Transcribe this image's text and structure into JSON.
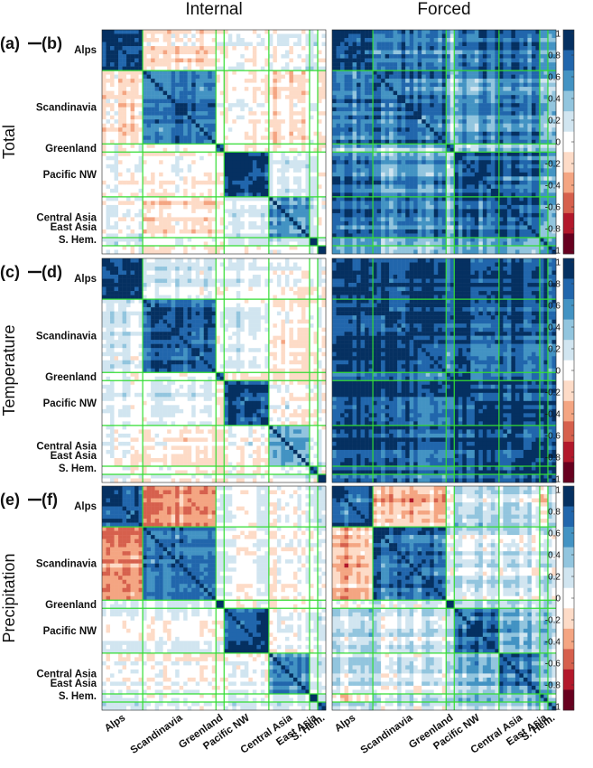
{
  "chart_data": {
    "type": "heatmap",
    "column_titles": [
      "Internal",
      "Forced"
    ],
    "row_titles": [
      "Total",
      "Temperature",
      "Precipitation"
    ],
    "panel_labels": [
      [
        "(a)",
        "(b)"
      ],
      [
        "(c)",
        "(d)"
      ],
      [
        "(e)",
        "(f)"
      ]
    ],
    "regions": [
      "Alps",
      "Scandinavia",
      "Greenland",
      "Pacific NW",
      "Central Asia",
      "East Asia",
      "S. Hem."
    ],
    "region_sizes": [
      10,
      18,
      2,
      11,
      10,
      2,
      2
    ],
    "block_means": {
      "internal": {
        "total": [
          [
            0.95,
            -0.12,
            0.05,
            0.02,
            0.05,
            0.1,
            0.08
          ],
          [
            -0.12,
            0.8,
            0.1,
            0.02,
            -0.08,
            0.0,
            0.0
          ],
          [
            0.05,
            0.1,
            0.95,
            0.0,
            0.0,
            0.0,
            0.0
          ],
          [
            0.02,
            0.02,
            0.0,
            0.92,
            0.1,
            0.05,
            0.05
          ],
          [
            0.05,
            -0.08,
            0.0,
            0.1,
            0.55,
            0.1,
            0.05
          ],
          [
            0.1,
            0.0,
            0.0,
            0.05,
            0.1,
            0.9,
            0.1
          ],
          [
            0.08,
            0.0,
            0.0,
            0.05,
            0.05,
            0.1,
            0.95
          ]
        ],
        "temperature": [
          [
            0.9,
            0.12,
            0.05,
            0.1,
            0.05,
            0.05,
            0.05
          ],
          [
            0.12,
            0.8,
            0.1,
            0.15,
            -0.05,
            0.0,
            0.0
          ],
          [
            0.05,
            0.1,
            0.95,
            0.05,
            0.0,
            0.0,
            0.0
          ],
          [
            0.1,
            0.15,
            0.05,
            0.95,
            0.05,
            0.05,
            0.05
          ],
          [
            0.05,
            -0.05,
            0.0,
            0.05,
            0.55,
            0.1,
            0.05
          ],
          [
            0.05,
            0.0,
            0.0,
            0.05,
            0.1,
            0.9,
            0.1
          ],
          [
            0.05,
            0.0,
            0.0,
            0.05,
            0.05,
            0.1,
            0.95
          ]
        ],
        "precipitation": [
          [
            0.85,
            -0.5,
            0.05,
            0.0,
            -0.05,
            0.05,
            0.05
          ],
          [
            -0.5,
            0.75,
            0.15,
            0.05,
            0.0,
            0.0,
            0.0
          ],
          [
            0.05,
            0.15,
            0.95,
            0.0,
            0.0,
            0.0,
            0.0
          ],
          [
            0.0,
            0.05,
            0.0,
            0.85,
            0.05,
            0.05,
            0.05
          ],
          [
            -0.05,
            0.0,
            0.0,
            0.05,
            0.6,
            0.1,
            0.05
          ],
          [
            0.05,
            0.0,
            0.0,
            0.05,
            0.1,
            0.9,
            0.1
          ],
          [
            0.05,
            0.0,
            0.0,
            0.05,
            0.05,
            0.1,
            0.95
          ]
        ]
      },
      "forced": {
        "total": [
          [
            0.95,
            0.7,
            0.4,
            0.75,
            0.75,
            0.5,
            0.4
          ],
          [
            0.7,
            0.75,
            0.35,
            0.6,
            0.65,
            0.4,
            0.3
          ],
          [
            0.4,
            0.35,
            0.95,
            0.35,
            0.35,
            0.3,
            0.2
          ],
          [
            0.75,
            0.6,
            0.35,
            0.85,
            0.75,
            0.5,
            0.4
          ],
          [
            0.75,
            0.65,
            0.35,
            0.75,
            0.8,
            0.55,
            0.4
          ],
          [
            0.5,
            0.4,
            0.3,
            0.5,
            0.55,
            0.6,
            0.4
          ],
          [
            0.4,
            0.3,
            0.2,
            0.4,
            0.4,
            0.4,
            0.6
          ]
        ],
        "temperature": [
          [
            0.98,
            0.9,
            0.85,
            0.92,
            0.92,
            0.85,
            0.8
          ],
          [
            0.9,
            0.92,
            0.85,
            0.88,
            0.88,
            0.82,
            0.78
          ],
          [
            0.85,
            0.85,
            0.95,
            0.85,
            0.85,
            0.8,
            0.75
          ],
          [
            0.92,
            0.88,
            0.85,
            0.95,
            0.92,
            0.85,
            0.8
          ],
          [
            0.92,
            0.88,
            0.85,
            0.92,
            0.95,
            0.85,
            0.8
          ],
          [
            0.85,
            0.82,
            0.8,
            0.85,
            0.85,
            0.9,
            0.78
          ],
          [
            0.8,
            0.78,
            0.75,
            0.8,
            0.8,
            0.78,
            0.9
          ]
        ],
        "precipitation": [
          [
            0.85,
            -0.3,
            0.1,
            0.2,
            0.15,
            -0.3,
            0.1
          ],
          [
            -0.3,
            0.8,
            0.2,
            0.15,
            0.1,
            0.1,
            0.05
          ],
          [
            0.1,
            0.2,
            0.95,
            0.1,
            0.05,
            0.05,
            0.05
          ],
          [
            0.2,
            0.15,
            0.1,
            0.75,
            0.4,
            0.3,
            0.2
          ],
          [
            0.15,
            0.1,
            0.05,
            0.4,
            0.7,
            0.3,
            0.2
          ],
          [
            -0.3,
            0.1,
            0.05,
            0.3,
            0.3,
            0.6,
            0.15
          ],
          [
            0.1,
            0.05,
            0.05,
            0.2,
            0.2,
            0.15,
            0.6
          ]
        ]
      }
    },
    "colorbar": {
      "range": [
        -1,
        1
      ],
      "ticks": [
        "1",
        "0.8",
        "0.6",
        "0.4",
        "0.2",
        "0",
        "-0.2",
        "-0.4",
        "-0.6",
        "-0.8",
        "-1"
      ]
    },
    "colormap": [
      "#67001f",
      "#b2182b",
      "#d6604d",
      "#f4a582",
      "#fddbc7",
      "#ffffff",
      "#d1e5f0",
      "#92c5de",
      "#4393c3",
      "#2166ac",
      "#053061"
    ],
    "separator_color": "#33dd33"
  }
}
